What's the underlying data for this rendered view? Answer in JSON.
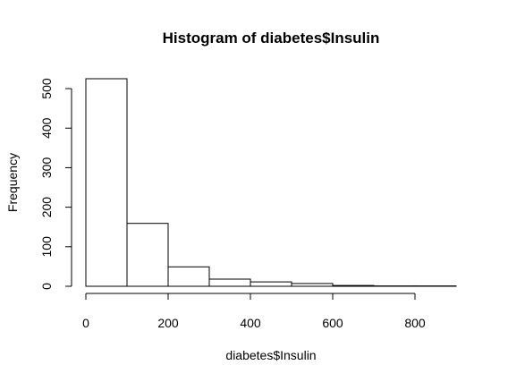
{
  "chart_data": {
    "type": "bar",
    "title": "Histogram of diabetes$Insulin",
    "xlabel": "diabetes$Insulin",
    "ylabel": "Frequency",
    "bin_edges": [
      0,
      100,
      200,
      300,
      400,
      500,
      600,
      700,
      800,
      900
    ],
    "values": [
      525,
      159,
      49,
      18,
      11,
      7,
      2,
      1,
      1
    ],
    "xlim": [
      0,
      900
    ],
    "ylim": [
      0,
      525
    ],
    "x_ticks": [
      0,
      200,
      400,
      600,
      800
    ],
    "y_ticks": [
      0,
      100,
      200,
      300,
      400,
      500
    ],
    "grid": false,
    "legend": "none",
    "colors": {
      "bar_fill": "#ffffff",
      "bar_stroke": "#000000",
      "text": "#000000"
    }
  }
}
